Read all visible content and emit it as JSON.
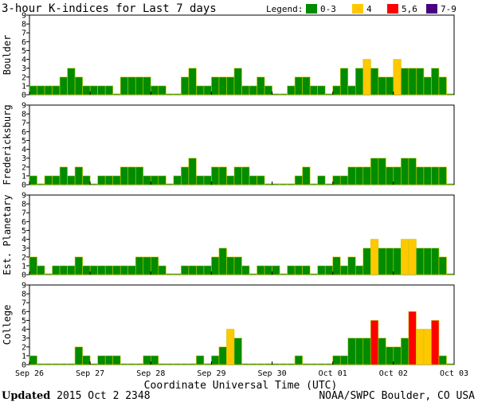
{
  "chart_data": {
    "type": "bar",
    "title": "3-hour K-indices for Last 7 days",
    "xlabel": "Coordinate Universal Time (UTC)",
    "ylim": [
      0,
      9
    ],
    "y_ticks": [
      "0",
      "1",
      "2",
      "3",
      "4",
      "5",
      "6",
      "7",
      "8",
      "9"
    ],
    "x_tick_labels": [
      "Sep 26",
      "Sep 27",
      "Sep 28",
      "Sep 29",
      "Sep 30",
      "Oct 01",
      "Oct 02",
      "Oct 03"
    ],
    "grid": false,
    "legend_placement": "top-right",
    "legend": {
      "title": "Legend:",
      "entries": [
        {
          "label": "0-3",
          "color": "#008c00"
        },
        {
          "label": "4",
          "color": "#ffc800"
        },
        {
          "label": "5,6",
          "color": "#ff0000"
        },
        {
          "label": "7-9",
          "color": "#4b0082"
        }
      ]
    },
    "bar_outline_color": "#c8c800",
    "panels": [
      {
        "name": "Boulder",
        "values": [
          1,
          1,
          1,
          1,
          2,
          3,
          2,
          1,
          1,
          1,
          1,
          0,
          2,
          2,
          2,
          2,
          1,
          1,
          0,
          0,
          2,
          3,
          1,
          1,
          2,
          2,
          2,
          3,
          1,
          1,
          2,
          1,
          0,
          0,
          1,
          2,
          2,
          1,
          1,
          0,
          1,
          3,
          1,
          3,
          4,
          3,
          2,
          2,
          4,
          3,
          3,
          3,
          2,
          3,
          2,
          0
        ]
      },
      {
        "name": "Fredericksburg",
        "values": [
          1,
          0,
          1,
          1,
          2,
          1,
          2,
          1,
          0,
          1,
          1,
          1,
          2,
          2,
          2,
          1,
          1,
          1,
          0,
          1,
          2,
          3,
          1,
          1,
          2,
          2,
          1,
          2,
          2,
          1,
          1,
          0,
          0,
          0,
          0,
          1,
          2,
          0,
          1,
          0,
          1,
          1,
          2,
          2,
          2,
          3,
          3,
          2,
          2,
          3,
          3,
          2,
          2,
          2,
          2,
          0
        ]
      },
      {
        "name": "Est. Planetary",
        "values": [
          2,
          1,
          0,
          1,
          1,
          1,
          2,
          1,
          1,
          1,
          1,
          1,
          1,
          1,
          2,
          2,
          2,
          1,
          0,
          0,
          1,
          1,
          1,
          1,
          2,
          3,
          2,
          2,
          1,
          0,
          1,
          1,
          1,
          0,
          1,
          1,
          1,
          0,
          1,
          1,
          2,
          1,
          2,
          1,
          3,
          4,
          3,
          3,
          3,
          4,
          4,
          3,
          3,
          3,
          2,
          0
        ]
      },
      {
        "name": "College",
        "values": [
          1,
          0,
          0,
          0,
          0,
          0,
          2,
          1,
          0,
          1,
          1,
          1,
          0,
          0,
          0,
          1,
          1,
          0,
          0,
          0,
          0,
          0,
          1,
          0,
          1,
          2,
          4,
          3,
          0,
          0,
          0,
          0,
          0,
          0,
          0,
          1,
          0,
          0,
          0,
          0,
          1,
          1,
          3,
          3,
          3,
          5,
          3,
          2,
          2,
          3,
          6,
          4,
          4,
          5,
          1,
          0
        ]
      }
    ]
  },
  "footer": {
    "updated_label": "Updated",
    "updated_time": "2015 Oct  2 2348",
    "source": "NOAA/SWPC Boulder, CO USA"
  }
}
